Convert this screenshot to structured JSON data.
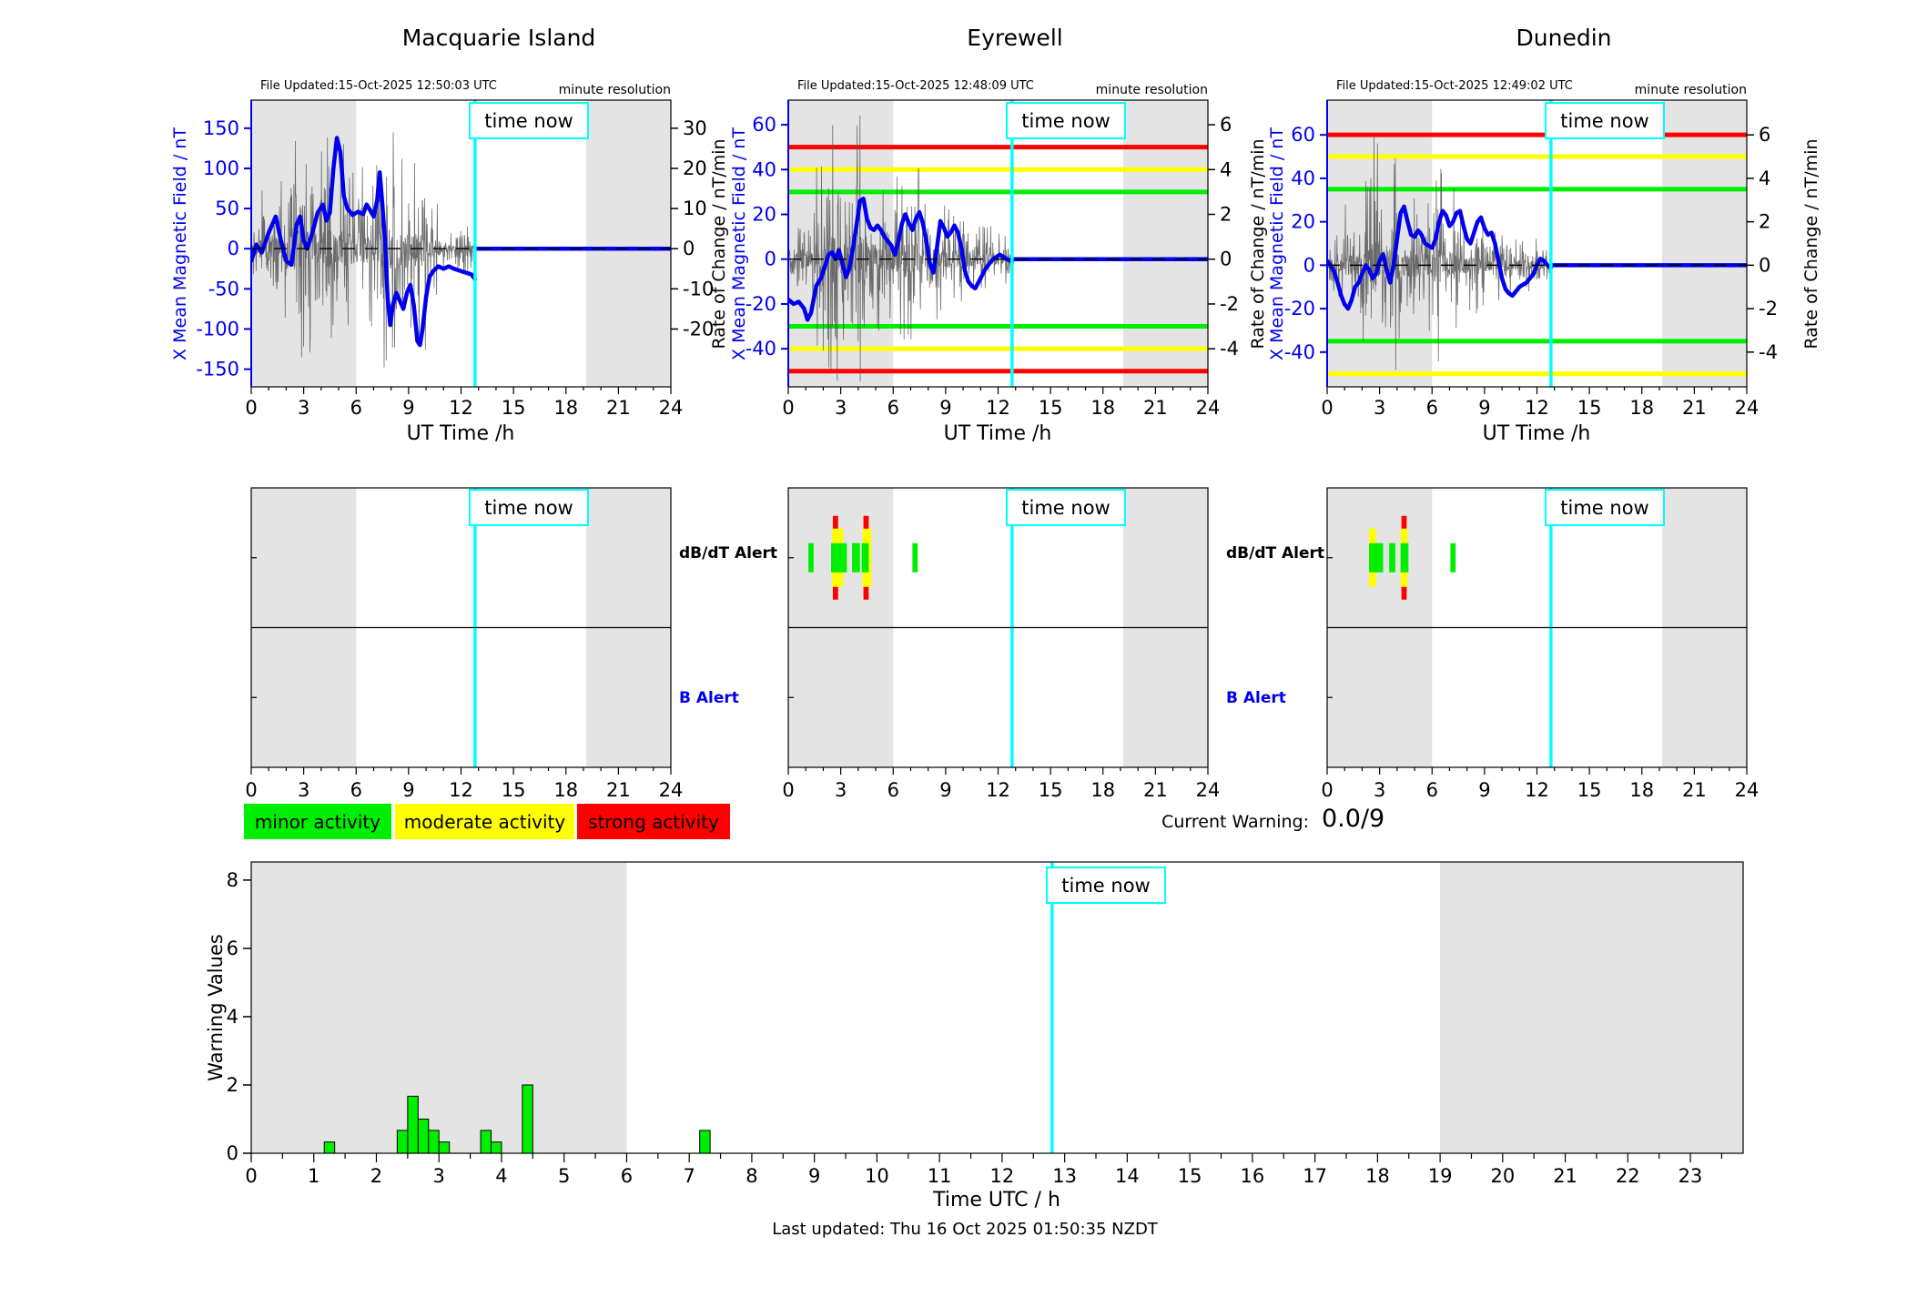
{
  "ui": {
    "time_now_label": "time now",
    "resolution_note": "minute resolution",
    "ut_xlabel": "UT Time /h",
    "left_axis_label": "X Mean Magnetic Field / nT",
    "right_axis_label": "Rate of Change / nT/min",
    "alert_db_dt_label": "dB/dT Alert",
    "alert_b_label": "B Alert"
  },
  "stations": [
    {
      "title": "Macquarie Island",
      "file_updated": "File Updated:15-Oct-2025 12:50:03 UTC"
    },
    {
      "title": "Eyrewell",
      "file_updated": "File Updated:15-Oct-2025 12:48:09 UTC"
    },
    {
      "title": "Dunedin",
      "file_updated": "File Updated:15-Oct-2025 12:49:02 UTC"
    }
  ],
  "legend": [
    {
      "label": "minor activity",
      "color": "#00EE00"
    },
    {
      "label": "moderate activity",
      "color": "#FFFF00"
    },
    {
      "label": "strong activity",
      "color": "#FF0000"
    }
  ],
  "current_warning": {
    "label": "Current Warning:",
    "value": "0.0/9"
  },
  "footer": {
    "last_updated": "Last updated: Thu 16 Oct 2025 01:50:35 NZDT"
  },
  "colors": {
    "blue": "#0000EE",
    "noise_gray": "#555555",
    "night_band": "#E4E4E4",
    "minor": "#00EE00",
    "moderate": "#FFFF00",
    "strong": "#FF0000",
    "cyan": "#00FFFF",
    "bar_green": "#00EE00"
  },
  "chart_data": [
    {
      "type": "line",
      "station": "Macquarie Island",
      "xlabel": "UT Time /h",
      "ylabel_left": "X Mean Magnetic Field / nT",
      "ylabel_right": "Rate of Change / nT/min",
      "xlim": [
        0,
        24
      ],
      "xticks": [
        0,
        3,
        6,
        9,
        12,
        15,
        18,
        21,
        24
      ],
      "ylim_left": [
        -172,
        185
      ],
      "yticks_left": [
        150,
        100,
        50,
        0,
        -50,
        -100,
        -150
      ],
      "ylim_right": [
        -34.4,
        37
      ],
      "yticks_right": [
        30,
        20,
        10,
        0,
        -10,
        -20
      ],
      "night_bands": [
        [
          0,
          6
        ],
        [
          19.16,
          24
        ]
      ],
      "time_now": 12.8,
      "thresholds": [],
      "mean_field_nT": [
        [
          0,
          -15
        ],
        [
          0.3,
          5
        ],
        [
          0.6,
          -5
        ],
        [
          1.0,
          20
        ],
        [
          1.4,
          40
        ],
        [
          1.7,
          10
        ],
        [
          2.0,
          -15
        ],
        [
          2.3,
          -20
        ],
        [
          2.6,
          30
        ],
        [
          2.8,
          40
        ],
        [
          3.0,
          10
        ],
        [
          3.2,
          0
        ],
        [
          3.5,
          20
        ],
        [
          3.8,
          45
        ],
        [
          4.1,
          55
        ],
        [
          4.3,
          35
        ],
        [
          4.5,
          45
        ],
        [
          4.7,
          100
        ],
        [
          4.9,
          138
        ],
        [
          5.1,
          120
        ],
        [
          5.3,
          65
        ],
        [
          5.5,
          50
        ],
        [
          5.8,
          42
        ],
        [
          6.1,
          46
        ],
        [
          6.4,
          43
        ],
        [
          6.6,
          55
        ],
        [
          6.8,
          48
        ],
        [
          7.0,
          40
        ],
        [
          7.2,
          60
        ],
        [
          7.35,
          95
        ],
        [
          7.5,
          55
        ],
        [
          7.65,
          10
        ],
        [
          7.8,
          -60
        ],
        [
          7.95,
          -95
        ],
        [
          8.1,
          -70
        ],
        [
          8.3,
          -55
        ],
        [
          8.5,
          -65
        ],
        [
          8.7,
          -75
        ],
        [
          8.9,
          -55
        ],
        [
          9.1,
          -45
        ],
        [
          9.3,
          -70
        ],
        [
          9.5,
          -115
        ],
        [
          9.65,
          -120
        ],
        [
          9.8,
          -100
        ],
        [
          10.0,
          -60
        ],
        [
          10.2,
          -35
        ],
        [
          10.4,
          -28
        ],
        [
          10.7,
          -22
        ],
        [
          11.0,
          -25
        ],
        [
          11.3,
          -22
        ],
        [
          11.6,
          -25
        ],
        [
          12.0,
          -28
        ],
        [
          12.3,
          -30
        ],
        [
          12.6,
          -32
        ],
        [
          12.8,
          -38
        ]
      ],
      "noise_envelope_nT": [
        [
          0,
          0.5,
          55
        ],
        [
          0.5,
          1,
          70
        ],
        [
          1,
          2,
          95
        ],
        [
          2,
          2.7,
          150
        ],
        [
          2.7,
          3.5,
          140
        ],
        [
          3.5,
          4.5,
          135
        ],
        [
          4.5,
          5.5,
          125
        ],
        [
          5.5,
          6.5,
          110
        ],
        [
          6.5,
          7.2,
          100
        ],
        [
          7.2,
          8,
          170
        ],
        [
          8,
          9,
          140
        ],
        [
          9,
          10,
          120
        ],
        [
          10,
          10.7,
          60
        ],
        [
          10.7,
          12,
          25
        ],
        [
          12,
          12.8,
          30
        ]
      ],
      "forecast": {
        "from": 12.8,
        "to": 24,
        "value": 0
      },
      "alert_segments": {
        "minor": [],
        "moderate": [],
        "strong": []
      }
    },
    {
      "type": "line",
      "station": "Eyrewell",
      "xlabel": "UT Time /h",
      "ylabel_left": "X Mean Magnetic Field / nT",
      "ylabel_right": "Rate of Change / nT/min",
      "xlim": [
        0,
        24
      ],
      "xticks": [
        0,
        3,
        6,
        9,
        12,
        15,
        18,
        21,
        24
      ],
      "ylim_left": [
        -57,
        71
      ],
      "yticks_left": [
        60,
        40,
        20,
        0,
        -20,
        -40
      ],
      "ylim_right": [
        -5.7,
        7.1
      ],
      "yticks_right": [
        6,
        4,
        2,
        0,
        -2,
        -4
      ],
      "night_bands": [
        [
          0,
          6
        ],
        [
          19.16,
          24
        ]
      ],
      "time_now": 12.8,
      "thresholds": [
        {
          "value": 30,
          "level": "minor"
        },
        {
          "value": -30,
          "level": "minor"
        },
        {
          "value": 40,
          "level": "moderate"
        },
        {
          "value": -40,
          "level": "moderate"
        },
        {
          "value": 50,
          "level": "strong"
        },
        {
          "value": -50,
          "level": "strong"
        }
      ],
      "mean_field_nT": [
        [
          0,
          -18
        ],
        [
          0.3,
          -20
        ],
        [
          0.6,
          -19
        ],
        [
          0.9,
          -22
        ],
        [
          1.1,
          -27
        ],
        [
          1.3,
          -24
        ],
        [
          1.6,
          -12
        ],
        [
          1.9,
          -8
        ],
        [
          2.1,
          -3
        ],
        [
          2.3,
          2
        ],
        [
          2.5,
          3
        ],
        [
          2.7,
          0
        ],
        [
          2.9,
          4
        ],
        [
          3.1,
          -2
        ],
        [
          3.3,
          -8
        ],
        [
          3.5,
          -4
        ],
        [
          3.7,
          5
        ],
        [
          3.9,
          15
        ],
        [
          4.1,
          26
        ],
        [
          4.3,
          27
        ],
        [
          4.5,
          18
        ],
        [
          4.7,
          14
        ],
        [
          4.9,
          13
        ],
        [
          5.1,
          15
        ],
        [
          5.3,
          13
        ],
        [
          5.5,
          10
        ],
        [
          5.7,
          8
        ],
        [
          5.9,
          6
        ],
        [
          6.1,
          2
        ],
        [
          6.3,
          8
        ],
        [
          6.5,
          16
        ],
        [
          6.7,
          20
        ],
        [
          6.9,
          16
        ],
        [
          7.1,
          13
        ],
        [
          7.3,
          18
        ],
        [
          7.5,
          21
        ],
        [
          7.7,
          16
        ],
        [
          7.9,
          8
        ],
        [
          8.1,
          -2
        ],
        [
          8.3,
          -6
        ],
        [
          8.5,
          5
        ],
        [
          8.7,
          17
        ],
        [
          8.9,
          14
        ],
        [
          9.1,
          10
        ],
        [
          9.3,
          12
        ],
        [
          9.5,
          15
        ],
        [
          9.7,
          12
        ],
        [
          9.9,
          5
        ],
        [
          10.1,
          -5
        ],
        [
          10.3,
          -10
        ],
        [
          10.5,
          -12
        ],
        [
          10.7,
          -13
        ],
        [
          10.9,
          -10
        ],
        [
          11.1,
          -7
        ],
        [
          11.3,
          -4
        ],
        [
          11.5,
          -2
        ],
        [
          11.7,
          0
        ],
        [
          11.9,
          1
        ],
        [
          12.1,
          2
        ],
        [
          12.3,
          1
        ],
        [
          12.5,
          0
        ],
        [
          12.8,
          -1
        ]
      ],
      "noise_envelope_nT": [
        [
          0,
          0.5,
          12
        ],
        [
          0.5,
          1.5,
          25
        ],
        [
          1.5,
          2.2,
          40
        ],
        [
          2.2,
          3,
          63
        ],
        [
          3,
          3.5,
          45
        ],
        [
          3.5,
          4.5,
          64
        ],
        [
          4.5,
          5,
          40
        ],
        [
          5,
          6,
          32
        ],
        [
          6,
          6.6,
          40
        ],
        [
          6.6,
          7.5,
          45
        ],
        [
          7.5,
          9,
          26
        ],
        [
          9,
          10.5,
          22
        ],
        [
          10.5,
          12,
          15
        ],
        [
          12,
          12.8,
          12
        ]
      ],
      "forecast": {
        "from": 12.8,
        "to": 24,
        "value": 0
      },
      "alert_segments": {
        "minor": [
          [
            1.15,
            1.45
          ],
          [
            2.45,
            3.35
          ],
          [
            3.65,
            4.1
          ],
          [
            4.2,
            4.6
          ],
          [
            7.1,
            7.4
          ]
        ],
        "moderate": [
          [
            2.5,
            3.15
          ],
          [
            4.25,
            4.75
          ]
        ],
        "strong": [
          [
            2.55,
            2.85
          ],
          [
            4.3,
            4.6
          ]
        ]
      }
    },
    {
      "type": "line",
      "station": "Dunedin",
      "xlabel": "UT Time /h",
      "ylabel_left": "X Mean Magnetic Field / nT",
      "ylabel_right": "Rate of Change / nT/min",
      "xlim": [
        0,
        24
      ],
      "xticks": [
        0,
        3,
        6,
        9,
        12,
        15,
        18,
        21,
        24
      ],
      "ylim_left": [
        -56,
        76
      ],
      "yticks_left": [
        60,
        40,
        20,
        0,
        -20,
        -40
      ],
      "ylim_right": [
        -5.6,
        7.6
      ],
      "yticks_right": [
        6,
        4,
        2,
        0,
        -2,
        -4
      ],
      "night_bands": [
        [
          0,
          6
        ],
        [
          19.16,
          24
        ]
      ],
      "time_now": 12.8,
      "thresholds": [
        {
          "value": 35,
          "level": "minor"
        },
        {
          "value": -35,
          "level": "minor"
        },
        {
          "value": 50,
          "level": "moderate"
        },
        {
          "value": -50,
          "level": "moderate"
        },
        {
          "value": 60,
          "level": "strong"
        },
        {
          "value": -60,
          "level": "strong"
        }
      ],
      "mean_field_nT": [
        [
          0,
          2
        ],
        [
          0.2,
          0
        ],
        [
          0.4,
          -3
        ],
        [
          0.6,
          -8
        ],
        [
          0.8,
          -14
        ],
        [
          1.0,
          -18
        ],
        [
          1.2,
          -20
        ],
        [
          1.4,
          -16
        ],
        [
          1.6,
          -10
        ],
        [
          1.8,
          -8
        ],
        [
          2.0,
          -4
        ],
        [
          2.2,
          0
        ],
        [
          2.4,
          -2
        ],
        [
          2.6,
          -6
        ],
        [
          2.8,
          -4
        ],
        [
          3.0,
          2
        ],
        [
          3.2,
          5
        ],
        [
          3.4,
          -2
        ],
        [
          3.6,
          -8
        ],
        [
          3.8,
          0
        ],
        [
          4.0,
          12
        ],
        [
          4.2,
          24
        ],
        [
          4.4,
          27
        ],
        [
          4.6,
          20
        ],
        [
          4.8,
          14
        ],
        [
          5.0,
          13
        ],
        [
          5.2,
          16
        ],
        [
          5.4,
          14
        ],
        [
          5.6,
          10
        ],
        [
          5.8,
          9
        ],
        [
          6.0,
          8
        ],
        [
          6.2,
          12
        ],
        [
          6.4,
          20
        ],
        [
          6.6,
          25
        ],
        [
          6.8,
          23
        ],
        [
          7.0,
          18
        ],
        [
          7.2,
          20
        ],
        [
          7.4,
          24
        ],
        [
          7.6,
          25
        ],
        [
          7.8,
          18
        ],
        [
          8.0,
          12
        ],
        [
          8.2,
          10
        ],
        [
          8.4,
          15
        ],
        [
          8.6,
          20
        ],
        [
          8.8,
          22
        ],
        [
          9.0,
          17
        ],
        [
          9.2,
          14
        ],
        [
          9.4,
          15
        ],
        [
          9.6,
          10
        ],
        [
          9.8,
          2
        ],
        [
          10.0,
          -6
        ],
        [
          10.2,
          -11
        ],
        [
          10.4,
          -13
        ],
        [
          10.6,
          -14
        ],
        [
          10.8,
          -12
        ],
        [
          11.0,
          -10
        ],
        [
          11.2,
          -9
        ],
        [
          11.4,
          -8
        ],
        [
          11.6,
          -6
        ],
        [
          11.8,
          -4
        ],
        [
          12.0,
          0
        ],
        [
          12.2,
          3
        ],
        [
          12.4,
          2
        ],
        [
          12.6,
          0
        ],
        [
          12.8,
          -1
        ]
      ],
      "noise_envelope_nT": [
        [
          0,
          1,
          15
        ],
        [
          1,
          2,
          28
        ],
        [
          2,
          2.5,
          45
        ],
        [
          2.5,
          3,
          70
        ],
        [
          3,
          4,
          50
        ],
        [
          4,
          5,
          40
        ],
        [
          5,
          6,
          30
        ],
        [
          6,
          6.6,
          48
        ],
        [
          6.6,
          7.5,
          35
        ],
        [
          7.5,
          9,
          22
        ],
        [
          9,
          10.5,
          16
        ],
        [
          10.5,
          12.8,
          12
        ]
      ],
      "forecast": {
        "from": 12.8,
        "to": 24,
        "value": 0
      },
      "alert_segments": {
        "minor": [
          [
            2.4,
            3.2
          ],
          [
            3.55,
            3.9
          ],
          [
            4.2,
            4.65
          ],
          [
            7.05,
            7.35
          ]
        ],
        "moderate": [
          [
            2.4,
            2.8
          ],
          [
            4.2,
            4.6
          ]
        ],
        "strong": [
          [
            4.25,
            4.55
          ]
        ]
      }
    },
    {
      "type": "bar",
      "title": "Warning Values",
      "ylabel": "Warning Values",
      "xlabel": "Time UTC / h",
      "xlim": [
        0,
        23.843
      ],
      "xticks": [
        0,
        1,
        2,
        3,
        4,
        5,
        6,
        7,
        8,
        9,
        10,
        11,
        12,
        13,
        14,
        15,
        16,
        17,
        18,
        19,
        20,
        21,
        22,
        23
      ],
      "ylim": [
        0,
        8.53
      ],
      "yticks": [
        0,
        2,
        4,
        6,
        8
      ],
      "night_bands": [
        [
          0,
          6
        ],
        [
          19,
          23.843
        ]
      ],
      "time_now": 12.8,
      "bar_width_hours": 0.1667,
      "bars": [
        {
          "t": 1.167,
          "value": 0.33
        },
        {
          "t": 2.333,
          "value": 0.67
        },
        {
          "t": 2.5,
          "value": 1.67
        },
        {
          "t": 2.667,
          "value": 1.0
        },
        {
          "t": 2.833,
          "value": 0.67
        },
        {
          "t": 3.0,
          "value": 0.33
        },
        {
          "t": 3.667,
          "value": 0.67
        },
        {
          "t": 3.833,
          "value": 0.33
        },
        {
          "t": 4.333,
          "value": 2.0
        },
        {
          "t": 7.167,
          "value": 0.67
        }
      ]
    }
  ]
}
